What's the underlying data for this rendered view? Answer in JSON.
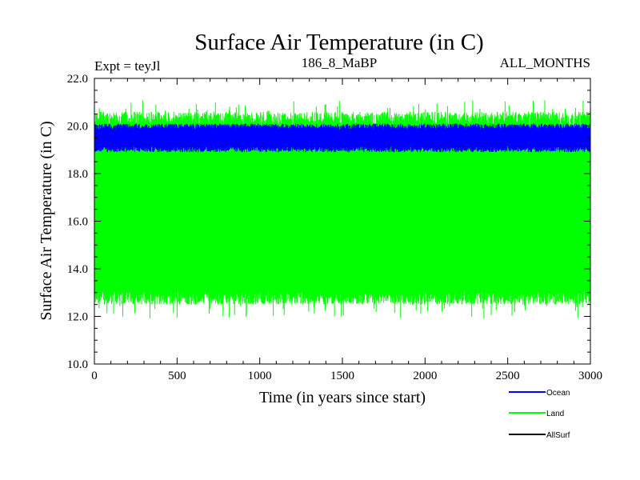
{
  "chart_data": {
    "type": "line",
    "title": "Surface Air Temperature (in C)",
    "subtitle_left": "Expt = teyJl",
    "subtitle_center": "186_8_MaBP",
    "subtitle_right": "ALL_MONTHS",
    "xlabel": "Time (in years since start)",
    "ylabel": "Surface Air Temperature (in C)",
    "xlim": [
      0,
      3000
    ],
    "ylim": [
      10.0,
      22.0
    ],
    "x_ticks": [
      0,
      500,
      1000,
      1500,
      2000,
      2500,
      3000
    ],
    "y_ticks": [
      10.0,
      12.0,
      14.0,
      16.0,
      18.0,
      20.0,
      22.0
    ],
    "x_tick_labels": [
      "0",
      "500",
      "1000",
      "1500",
      "2000",
      "2500",
      "3000"
    ],
    "y_tick_labels": [
      "10.0",
      "12.0",
      "14.0",
      "16.0",
      "18.0",
      "20.0",
      "22.0"
    ],
    "legend_position": "bottom-right",
    "series": [
      {
        "name": "Ocean",
        "color": "#0000ff",
        "band_min": 18.9,
        "band_max": 20.1,
        "center": 19.4
      },
      {
        "name": "Land",
        "color": "#00ff00",
        "band_min": 12.5,
        "band_max": 20.6,
        "extreme_min": 11.9,
        "extreme_max": 21.1,
        "center": 16.5
      },
      {
        "name": "AllSurf",
        "color": "#000000"
      }
    ]
  }
}
